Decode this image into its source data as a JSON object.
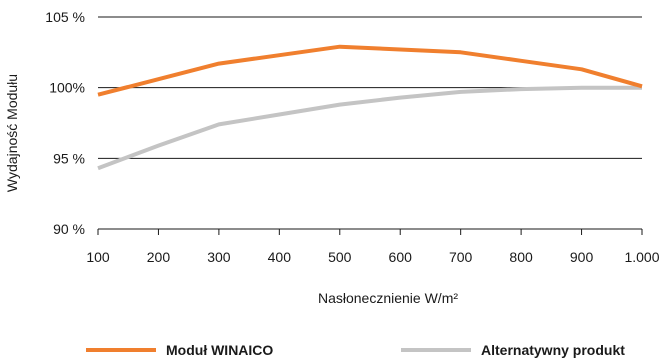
{
  "chart_data": {
    "type": "line",
    "xlabel": "Nasłonecznienie W/m²",
    "ylabel": "Wydajność Modułu",
    "x": [
      100,
      200,
      300,
      400,
      500,
      600,
      700,
      800,
      900,
      1000
    ],
    "x_tick_labels": [
      "100",
      "200",
      "300",
      "400",
      "500",
      "600",
      "700",
      "800",
      "900",
      "1.000"
    ],
    "ylim": [
      90,
      105
    ],
    "y_ticks": [
      90,
      95,
      100,
      105
    ],
    "y_tick_labels": [
      "90 %",
      "95 %",
      "100%",
      "105 %"
    ],
    "grid": "horizontal",
    "legend_placement": "bottom",
    "series": [
      {
        "name": "Moduł WINAICO",
        "color": "#f07f2e",
        "points": [
          [
            100,
            99.5
          ],
          [
            200,
            100.6
          ],
          [
            300,
            101.7
          ],
          [
            400,
            102.3
          ],
          [
            500,
            102.9
          ],
          [
            600,
            102.7
          ],
          [
            700,
            102.5
          ],
          [
            800,
            101.9
          ],
          [
            900,
            101.3
          ],
          [
            1000,
            100.1
          ]
        ]
      },
      {
        "name": "Alternatywny produkt",
        "color": "#c4c4c4",
        "points": [
          [
            100,
            94.3
          ],
          [
            200,
            95.9
          ],
          [
            300,
            97.4
          ],
          [
            400,
            98.1
          ],
          [
            500,
            98.8
          ],
          [
            600,
            99.3
          ],
          [
            700,
            99.7
          ],
          [
            800,
            99.9
          ],
          [
            900,
            100.0
          ],
          [
            1000,
            100.0
          ]
        ]
      }
    ]
  }
}
